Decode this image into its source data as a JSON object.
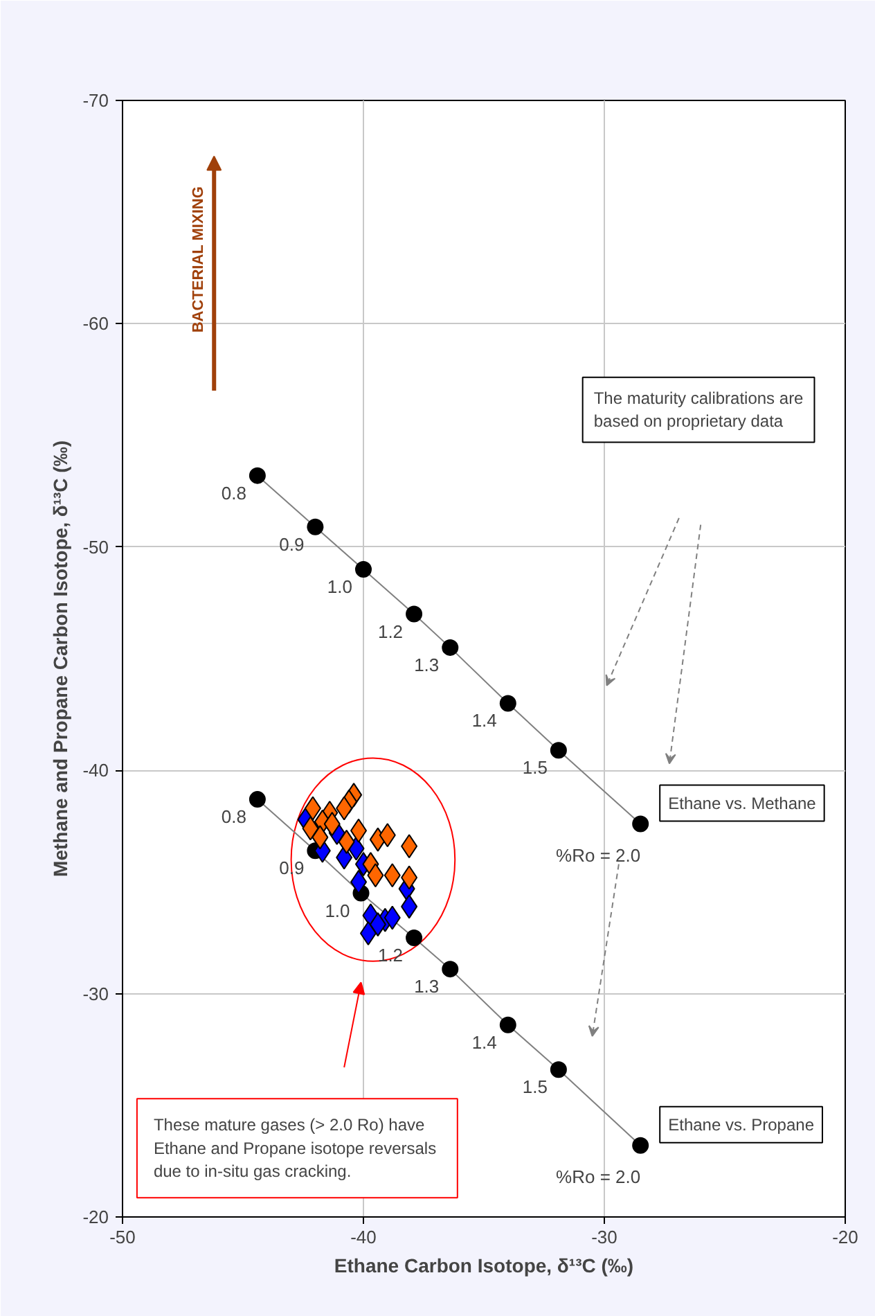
{
  "chart_data": {
    "type": "scatter",
    "xlabel": "Ethane Carbon Isotope, δ¹³C (‰)",
    "ylabel": "Methane and Propane Carbon Isotope, δ¹³C (‰)",
    "xlim": [
      -50,
      -20
    ],
    "xticks": [
      -50,
      -40,
      -30,
      -20
    ],
    "ylim": [
      -20,
      -70
    ],
    "yticks": [
      -70,
      -60,
      -50,
      -40,
      -30,
      -20
    ],
    "grid": true,
    "marker": "diamond",
    "series": [
      {
        "name": "Ethane vs. Methane",
        "type": "line",
        "marker": "circle",
        "color": "#000000",
        "x": [
          -44.4,
          -42.0,
          -40.0,
          -37.9,
          -36.4,
          -34.0,
          -31.9,
          -28.5
        ],
        "values": [
          -53.2,
          -50.9,
          -49.0,
          -47.0,
          -45.5,
          -43.0,
          -40.9,
          -37.6
        ]
      },
      {
        "name": "Ethane vs. Propane",
        "type": "line",
        "marker": "circle",
        "color": "#000000",
        "x": [
          -44.4,
          -42.0,
          -40.1,
          -37.9,
          -36.4,
          -34.0,
          -31.9,
          -28.5
        ],
        "values": [
          -38.7,
          -36.4,
          -34.5,
          -32.5,
          -31.1,
          -28.6,
          -26.6,
          -23.2
        ]
      },
      {
        "color": "#0000ff",
        "x": [
          -42.4,
          -41.1,
          -41.7,
          -40.8,
          -40.3,
          -40.0,
          -40.2,
          -38.2,
          -38.1,
          -39.7,
          -39.1,
          -38.8,
          -39.8,
          -39.4
        ],
        "values": [
          -37.8,
          -37.2,
          -36.4,
          -36.1,
          -36.5,
          -35.8,
          -35.0,
          -34.7,
          -33.9,
          -33.5,
          -33.3,
          -33.4,
          -32.7,
          -33.1
        ]
      },
      {
        "color": "#ff6600",
        "x": [
          -40.4,
          -40.6,
          -42.1,
          -41.4,
          -40.8,
          -41.7,
          -41.3,
          -42.2,
          -41.8,
          -40.2,
          -40.7,
          -39.4,
          -39.0,
          -38.1,
          -39.7,
          -39.5,
          -38.8,
          -38.1
        ],
        "values": [
          -38.9,
          -38.6,
          -38.3,
          -38.1,
          -38.3,
          -37.7,
          -37.6,
          -37.4,
          -37.0,
          -37.3,
          -36.8,
          -36.9,
          -37.1,
          -36.6,
          -35.8,
          -35.3,
          -35.3,
          -35.2
        ]
      }
    ],
    "annotations": [
      "BACTERIAL MIXING",
      "The maturity calibrations are based on proprietary data",
      "These mature gases (> 2.0 Ro) have Ethane and Propane  isotope reversals due to in-situ gas cracking.",
      {
        "text": "0.8",
        "x": -44.4,
        "y": -53.2
      },
      {
        "text": "0.9",
        "x": -42.0,
        "y": -50.9
      },
      {
        "text": "1.0",
        "x": -40.0,
        "y": -49.0
      },
      {
        "text": "1.2",
        "x": -37.9,
        "y": -47.0
      },
      {
        "text": "1.3",
        "x": -36.4,
        "y": -45.5
      },
      {
        "text": "1.4",
        "x": -34.0,
        "y": -43.0
      },
      {
        "text": "1.5",
        "x": -31.9,
        "y": -40.9
      },
      {
        "text": "%Ro = 2.0",
        "x": -28.5,
        "y": -37.6
      },
      {
        "text": "0.8",
        "x": -44.4,
        "y": -38.7
      },
      {
        "text": "0.9",
        "x": -42.0,
        "y": -36.4
      },
      {
        "text": "1.0",
        "x": -40.1,
        "y": -34.5
      },
      {
        "text": "1.2",
        "x": -37.9,
        "y": -32.5
      },
      {
        "text": "1.3",
        "x": -36.4,
        "y": -31.1
      },
      {
        "text": "1.4",
        "x": -34.0,
        "y": -28.6
      },
      {
        "text": "1.5",
        "x": -31.9,
        "y": -26.6
      },
      {
        "text": "%Ro = 2.0",
        "x": -28.5,
        "y": -23.2
      }
    ]
  }
}
